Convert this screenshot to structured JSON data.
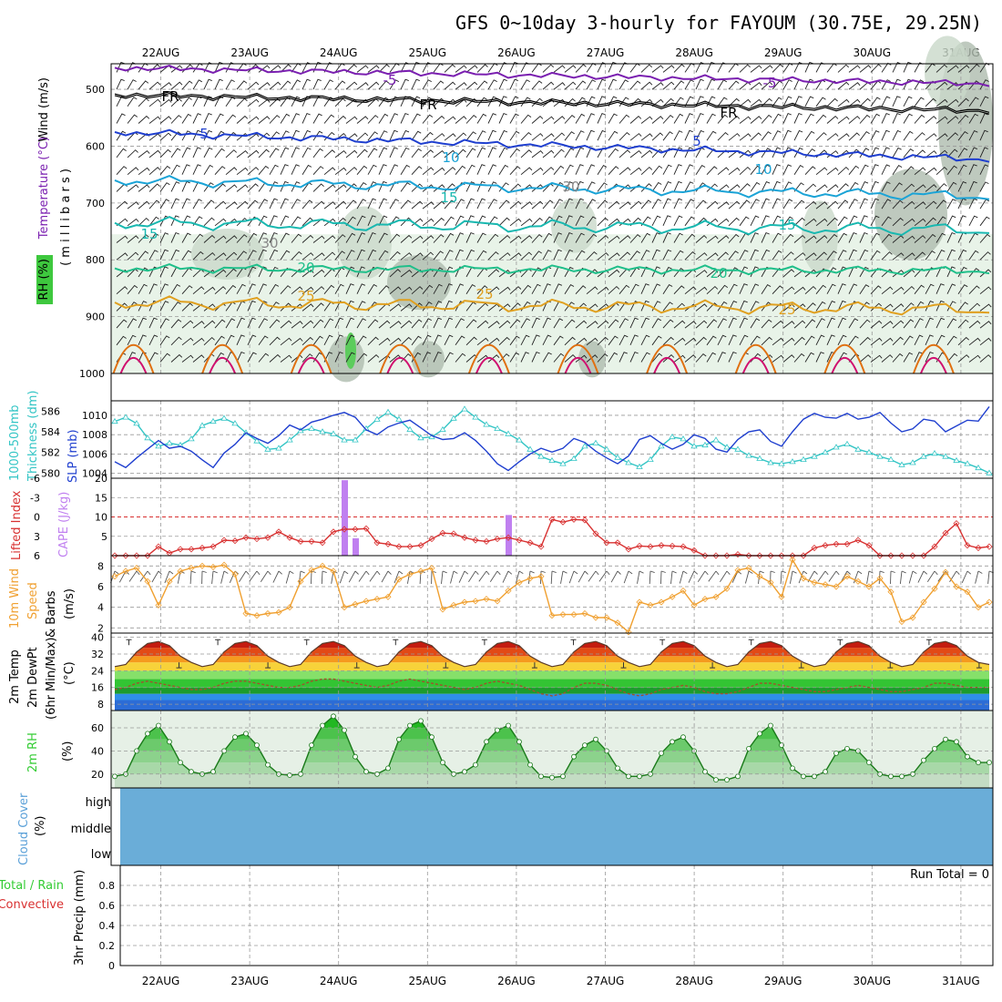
{
  "title": "GFS 0~10day 3-hourly for FAYOUM (30.75E, 29.25N)",
  "dates": [
    "22AUG",
    "23AUG",
    "24AUG",
    "25AUG",
    "26AUG",
    "27AUG",
    "28AUG",
    "29AUG",
    "30AUG",
    "31AUG"
  ],
  "colors": {
    "purple": "#7a1fb0",
    "blue": "#1f3fcf",
    "cyan": "#1aa3d6",
    "teal": "#19b8b0",
    "green20": "#1fbf8a",
    "orange": "#e0a020",
    "orange2": "#e07010",
    "magenta": "#d0106f",
    "slp": "#1f3fcf",
    "thick": "#33c5c5",
    "li": "#d83030",
    "cape": "#c080f0",
    "wind": "#f0a030",
    "cloud": "#6aadd8",
    "rh": "#33cc33"
  },
  "panels": {
    "upper": {
      "ylabels": [
        "Wind (m/s)",
        "Temperature (°C)",
        "RH (%)",
        "( m i l l i b a r s )"
      ],
      "pressure_ticks": [
        500,
        600,
        700,
        800,
        900,
        1000
      ],
      "contour_labels": [
        "-5",
        "FR",
        "5",
        "10",
        "15",
        "20",
        "25",
        "30"
      ]
    },
    "slp": {
      "ylabels": [
        "1000-500mb",
        "Thickness (dm)",
        "SLP (mb)"
      ],
      "left_ticks": [
        586,
        584,
        582,
        580
      ],
      "right_ticks": [
        1010,
        1008,
        1006,
        1004
      ]
    },
    "cape": {
      "ylabels": [
        "Lifted Index",
        "CAPE (J/kg)"
      ],
      "left_ticks": [
        "-6",
        "-3",
        "0",
        "3",
        "6"
      ],
      "right_ticks": [
        "20",
        "15",
        "10",
        "5"
      ]
    },
    "wind10": {
      "ylabels": [
        "10m Wind",
        "Speed",
        "& Barbs",
        "(m/s)"
      ],
      "ticks": [
        8,
        6,
        4,
        2
      ]
    },
    "temp": {
      "ylabels": [
        "2m Temp",
        "2m DewPt",
        "(6hr Min/Max)",
        "(°C)"
      ],
      "ticks": [
        40,
        32,
        24,
        16,
        8
      ]
    },
    "rh": {
      "ylabels": [
        "2m RH",
        "(%)"
      ],
      "ticks": [
        60,
        40,
        20
      ]
    },
    "cloud": {
      "ylabels": [
        "Cloud Cover",
        "(%)"
      ],
      "levels": [
        "high",
        "middle",
        "low"
      ]
    },
    "precip": {
      "ylabels": [
        "Total / Rain",
        "Convective",
        "3hr Precip (mm)"
      ],
      "ticks": [
        "0.8",
        "0.6",
        "0.4",
        "0.2",
        "0"
      ],
      "run_total": "Run Total = 0"
    }
  },
  "chart_data": [
    {
      "type": "line",
      "title": "SLP (mb) and 1000-500mb Thickness (dm)",
      "x_steps": 81,
      "series": [
        {
          "name": "SLP (mb)",
          "axis": "right",
          "ylim": [
            1003.5,
            1011.5
          ],
          "values": [
            1005.2,
            1004.6,
            1005.6,
            1006.5,
            1007.4,
            1006.6,
            1006.8,
            1006.3,
            1005.4,
            1004.6,
            1006.1,
            1007.0,
            1008.2,
            1007.6,
            1007.1,
            1007.9,
            1009.0,
            1008.5,
            1009.3,
            1009.6,
            1010.0,
            1010.3,
            1009.8,
            1008.5,
            1008.0,
            1008.8,
            1009.2,
            1009.5,
            1008.7,
            1007.9,
            1007.5,
            1007.6,
            1008.2,
            1007.4,
            1006.3,
            1005.0,
            1004.3,
            1005.2,
            1006.0,
            1006.6,
            1006.2,
            1006.6,
            1007.6,
            1007.2,
            1006.3,
            1005.6,
            1005.0,
            1005.8,
            1007.5,
            1007.9,
            1007.1,
            1006.5,
            1007.0,
            1008.0,
            1007.6,
            1006.5,
            1006.2,
            1007.5,
            1008.3,
            1008.5,
            1007.3,
            1006.8,
            1008.3,
            1009.6,
            1010.2,
            1009.8,
            1009.7,
            1010.2,
            1009.6,
            1009.8,
            1010.3,
            1009.2,
            1008.3,
            1008.6,
            1009.6,
            1009.4,
            1008.3,
            1008.9,
            1009.5,
            1009.4,
            1010.9
          ]
        },
        {
          "name": "1000-500mb Thickness (dm)",
          "axis": "left",
          "ylim": [
            579.5,
            587.0
          ],
          "values": [
            585.0,
            585.4,
            584.8,
            583.4,
            582.6,
            582.9,
            582.7,
            583.3,
            584.6,
            585.0,
            585.3,
            584.8,
            583.9,
            583.1,
            582.3,
            582.4,
            583.2,
            584.1,
            584.3,
            584.0,
            583.8,
            583.2,
            583.2,
            584.3,
            585.2,
            585.9,
            585.2,
            584.2,
            583.4,
            583.5,
            584.2,
            585.3,
            586.2,
            585.4,
            584.7,
            584.3,
            583.8,
            583.2,
            582.3,
            581.6,
            581.2,
            580.9,
            581.4,
            582.6,
            582.9,
            582.3,
            581.5,
            581.0,
            580.6,
            581.3,
            582.6,
            583.5,
            583.3,
            582.6,
            582.7,
            583.2,
            582.5,
            582.3,
            581.7,
            581.4,
            581.0,
            580.9,
            581.1,
            581.3,
            581.6,
            582.0,
            582.5,
            582.8,
            582.3,
            582.0,
            581.6,
            581.3,
            580.8,
            581.0,
            581.6,
            581.9,
            581.6,
            581.2,
            580.9,
            580.5,
            580.0
          ]
        }
      ]
    },
    {
      "type": "bar",
      "title": "CAPE (J/kg) and Lifted Index",
      "x_steps": 81,
      "series": [
        {
          "name": "CAPE (J/kg)",
          "axis": "right",
          "ylim": [
            0,
            20
          ],
          "bars": [
            {
              "step": 21,
              "value": 19.5
            },
            {
              "step": 22,
              "value": 4.5
            },
            {
              "step": 36,
              "value": 10.5
            }
          ]
        },
        {
          "name": "Lifted Index",
          "axis": "left",
          "ylim": [
            6,
            -6
          ],
          "values": [
            6.0,
            6.0,
            6.0,
            6.0,
            4.6,
            5.6,
            5.0,
            5.0,
            4.8,
            4.6,
            3.6,
            3.7,
            3.2,
            3.4,
            3.2,
            2.3,
            3.2,
            3.8,
            3.8,
            4.0,
            2.3,
            1.9,
            1.9,
            1.8,
            4.0,
            4.2,
            4.6,
            4.6,
            4.4,
            3.4,
            2.5,
            2.6,
            3.2,
            3.6,
            3.8,
            3.4,
            3.2,
            3.6,
            4.0,
            4.6,
            0.4,
            0.8,
            0.4,
            0.5,
            2.6,
            4.0,
            4.0,
            5.0,
            4.5,
            4.6,
            4.4,
            4.5,
            4.6,
            5.2,
            6.0,
            6.0,
            6.0,
            5.8,
            6.0,
            6.0,
            6.0,
            6.0,
            6.0,
            6.0,
            4.8,
            4.4,
            4.2,
            4.2,
            3.6,
            4.4,
            6.0,
            6.0,
            6.0,
            6.0,
            6.0,
            4.6,
            2.5,
            1.0,
            4.4,
            4.8,
            4.6
          ]
        }
      ]
    },
    {
      "type": "line",
      "title": "10m Wind Speed (m/s)",
      "x_steps": 81,
      "ylim": [
        1.5,
        9
      ],
      "series": [
        {
          "name": "10m Wind Speed",
          "values": [
            7.0,
            7.5,
            7.8,
            6.5,
            4.2,
            6.5,
            7.5,
            7.8,
            8.0,
            7.9,
            8.1,
            7.2,
            3.4,
            3.2,
            3.4,
            3.5,
            4.0,
            6.5,
            7.6,
            8.0,
            7.5,
            4.0,
            4.3,
            4.6,
            4.8,
            5.0,
            6.7,
            7.2,
            7.5,
            7.8,
            3.8,
            4.2,
            4.5,
            4.6,
            4.8,
            4.6,
            5.6,
            6.4,
            6.8,
            7.0,
            3.2,
            3.3,
            3.3,
            3.4,
            3.0,
            3.0,
            2.5,
            1.6,
            4.5,
            4.2,
            4.5,
            5.0,
            5.6,
            4.2,
            4.8,
            5.0,
            5.8,
            7.6,
            7.8,
            7.0,
            6.4,
            5.0,
            8.6,
            6.8,
            6.4,
            6.2,
            6.0,
            7.0,
            6.5,
            6.0,
            6.8,
            5.5,
            2.6,
            3.0,
            4.5,
            5.8,
            7.4,
            6.0,
            5.5,
            4.0,
            4.5
          ]
        }
      ]
    },
    {
      "type": "area",
      "title": "2m Temp / 2m DewPt (°C)",
      "x_steps": 81,
      "ylim": [
        5,
        42
      ],
      "series": [
        {
          "name": "2m Temp",
          "values": [
            26,
            27,
            33,
            37,
            38,
            36,
            31,
            28,
            26,
            27,
            33,
            37,
            38,
            36,
            31,
            28,
            26,
            27,
            33,
            37,
            38,
            36,
            31,
            28,
            26,
            27,
            33,
            37,
            38,
            36,
            31,
            28,
            26,
            27,
            33,
            37,
            38,
            36,
            31,
            28,
            26,
            27,
            33,
            37,
            38,
            36,
            31,
            28,
            26,
            27,
            33,
            37,
            38,
            36,
            31,
            28,
            26,
            27,
            33,
            37,
            38,
            36,
            31,
            28,
            26,
            27,
            33,
            37,
            38,
            36,
            31,
            28,
            26,
            27,
            33,
            37,
            38,
            36,
            31,
            28,
            27
          ]
        },
        {
          "name": "2m DewPt",
          "values": [
            15,
            16,
            18,
            19,
            18,
            17,
            16,
            15,
            15,
            16,
            18,
            19,
            19,
            18,
            17,
            16,
            16,
            17,
            19,
            20,
            20,
            19,
            18,
            17,
            16,
            17,
            19,
            20,
            19,
            18,
            17,
            16,
            15,
            16,
            18,
            19,
            18,
            17,
            15,
            13,
            12,
            13,
            16,
            18,
            18,
            17,
            15,
            13,
            12,
            13,
            15,
            16,
            17,
            16,
            14,
            13,
            13,
            14,
            16,
            18,
            18,
            17,
            16,
            15,
            14,
            14,
            15,
            16,
            17,
            16,
            15,
            14,
            14,
            15,
            16,
            18,
            18,
            17,
            16,
            16,
            16
          ]
        }
      ]
    },
    {
      "type": "area",
      "title": "2m RH (%)",
      "x_steps": 81,
      "ylim": [
        8,
        75
      ],
      "series": [
        {
          "name": "2m RH",
          "values": [
            18,
            20,
            40,
            55,
            62,
            48,
            30,
            22,
            20,
            22,
            40,
            52,
            55,
            45,
            28,
            20,
            19,
            20,
            45,
            62,
            70,
            58,
            35,
            22,
            20,
            25,
            50,
            62,
            66,
            52,
            30,
            20,
            22,
            28,
            48,
            58,
            62,
            48,
            28,
            18,
            17,
            18,
            35,
            45,
            50,
            40,
            25,
            18,
            18,
            20,
            38,
            48,
            52,
            40,
            22,
            15,
            15,
            18,
            42,
            55,
            62,
            45,
            25,
            18,
            18,
            22,
            38,
            42,
            40,
            30,
            20,
            18,
            18,
            20,
            32,
            42,
            50,
            48,
            35,
            30,
            30
          ]
        }
      ]
    }
  ]
}
